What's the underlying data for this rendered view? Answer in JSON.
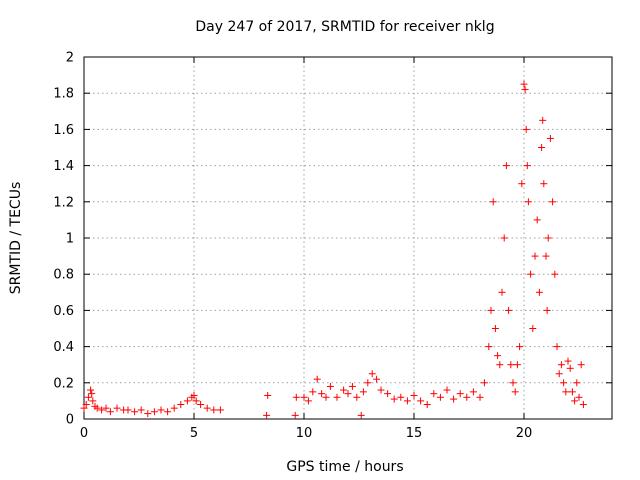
{
  "chart_data": {
    "type": "scatter",
    "title": "Day 247 of 2017, SRMTID for receiver nklg",
    "xlabel": "GPS time / hours",
    "ylabel": "SRMTID / TECUs",
    "xlim": [
      0,
      24
    ],
    "ylim": [
      0,
      2
    ],
    "xticks": [
      0,
      5,
      10,
      15,
      20
    ],
    "xtick_labels": [
      "0",
      "5",
      "10",
      "15",
      "20"
    ],
    "yticks": [
      0,
      0.2,
      0.4,
      0.6,
      0.8,
      1,
      1.2,
      1.4,
      1.6,
      1.8,
      2
    ],
    "ytick_labels": [
      "0",
      "0.2",
      "0.4",
      "0.6",
      "0.8",
      "1",
      "1.2",
      "1.4",
      "1.6",
      "1.8",
      "2"
    ],
    "grid": true,
    "marker": "+",
    "series_color": "#ff0000",
    "series": [
      {
        "name": "SRMTID",
        "x": [
          0.0,
          0.1,
          0.2,
          0.3,
          0.35,
          0.4,
          0.5,
          0.6,
          0.8,
          1.0,
          1.2,
          1.5,
          1.8,
          2.0,
          2.3,
          2.6,
          2.9,
          3.2,
          3.5,
          3.8,
          4.1,
          4.4,
          4.7,
          4.9,
          5.0,
          5.1,
          5.3,
          5.6,
          5.9,
          6.2,
          8.3,
          8.35,
          9.6,
          9.65,
          10.0,
          10.2,
          10.4,
          10.6,
          10.8,
          11.0,
          11.2,
          11.5,
          11.8,
          12.0,
          12.2,
          12.4,
          12.6,
          12.7,
          12.9,
          13.1,
          13.3,
          13.5,
          13.8,
          14.1,
          14.4,
          14.7,
          15.0,
          15.3,
          15.6,
          15.9,
          16.2,
          16.5,
          16.8,
          17.1,
          17.4,
          17.7,
          18.0,
          18.2,
          18.4,
          18.5,
          18.6,
          18.7,
          18.8,
          18.9,
          19.0,
          19.1,
          19.2,
          19.3,
          19.4,
          19.5,
          19.6,
          19.7,
          19.8,
          19.9,
          20.0,
          20.05,
          20.1,
          20.15,
          20.2,
          20.3,
          20.4,
          20.5,
          20.6,
          20.7,
          20.8,
          20.85,
          20.9,
          21.0,
          21.05,
          21.1,
          21.2,
          21.3,
          21.4,
          21.5,
          21.6,
          21.7,
          21.8,
          21.9,
          22.0,
          22.1,
          22.2,
          22.3,
          22.4,
          22.5,
          22.6,
          22.7
        ],
        "y": [
          0.06,
          0.08,
          0.12,
          0.16,
          0.14,
          0.1,
          0.07,
          0.06,
          0.05,
          0.06,
          0.04,
          0.06,
          0.05,
          0.05,
          0.04,
          0.05,
          0.03,
          0.04,
          0.05,
          0.04,
          0.06,
          0.08,
          0.1,
          0.12,
          0.13,
          0.1,
          0.08,
          0.06,
          0.05,
          0.05,
          0.02,
          0.13,
          0.02,
          0.12,
          0.12,
          0.1,
          0.15,
          0.22,
          0.14,
          0.12,
          0.18,
          0.12,
          0.16,
          0.14,
          0.18,
          0.12,
          0.02,
          0.15,
          0.2,
          0.25,
          0.22,
          0.16,
          0.14,
          0.11,
          0.12,
          0.1,
          0.13,
          0.1,
          0.08,
          0.14,
          0.12,
          0.16,
          0.11,
          0.14,
          0.12,
          0.15,
          0.12,
          0.2,
          0.4,
          0.6,
          1.2,
          0.5,
          0.35,
          0.3,
          0.7,
          1.0,
          1.4,
          0.6,
          0.3,
          0.2,
          0.15,
          0.3,
          0.4,
          1.3,
          1.85,
          1.82,
          1.6,
          1.4,
          1.2,
          0.8,
          0.5,
          0.9,
          1.1,
          0.7,
          1.5,
          1.65,
          1.3,
          0.9,
          0.6,
          1.0,
          1.55,
          1.2,
          0.8,
          0.4,
          0.25,
          0.3,
          0.2,
          0.15,
          0.32,
          0.28,
          0.15,
          0.1,
          0.2,
          0.12,
          0.3,
          0.08
        ]
      }
    ]
  }
}
